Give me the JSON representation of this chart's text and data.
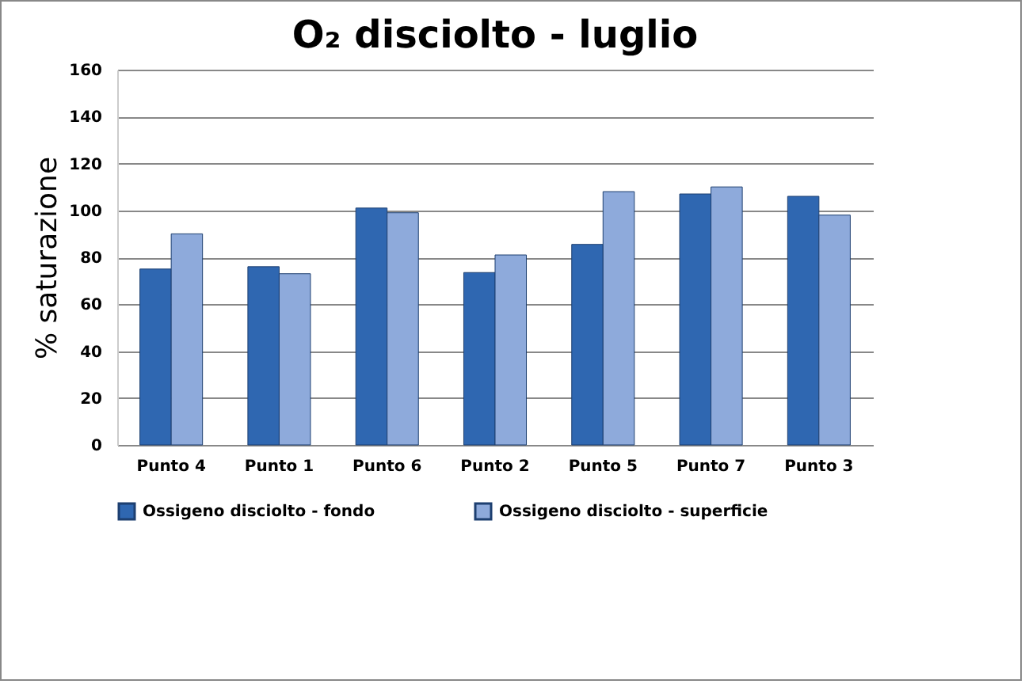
{
  "chart_data": {
    "type": "bar",
    "title": "O₂ disciolto - luglio",
    "ylabel": "% saturazione",
    "categories": [
      "Punto 4",
      "Punto 1",
      "Punto 6",
      "Punto 2",
      "Punto 5",
      "Punto 7",
      "Punto 3"
    ],
    "series": [
      {
        "name": "Ossigeno disciolto - fondo",
        "color": "#2f67b1",
        "values": [
          75,
          76,
          101,
          73.5,
          85.5,
          107,
          106
        ]
      },
      {
        "name": "Ossigeno disciolto - superficie",
        "color": "#8eaadb",
        "values": [
          90,
          73,
          99,
          81,
          108,
          110,
          98
        ]
      }
    ],
    "ylim": [
      0,
      160
    ],
    "yticks": [
      0,
      20,
      40,
      60,
      80,
      100,
      120,
      140,
      160
    ],
    "grid": "y",
    "legend": "bottom"
  }
}
